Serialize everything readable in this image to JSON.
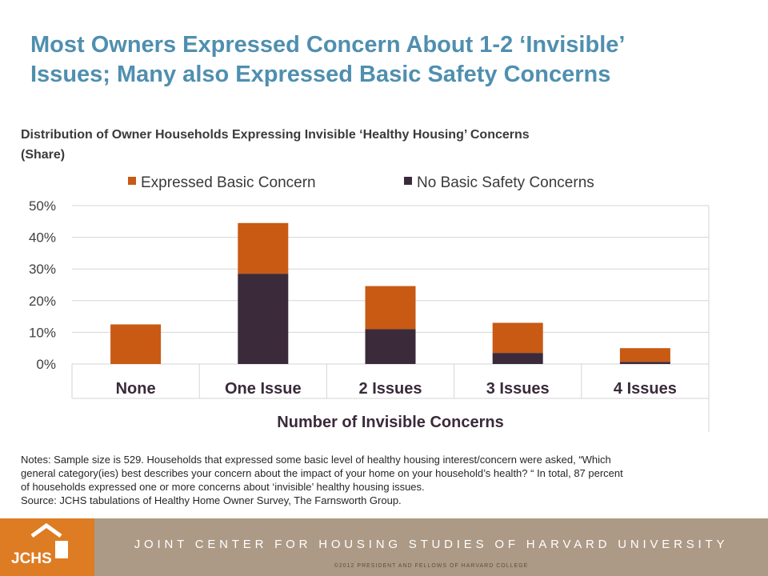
{
  "page": {
    "title_line1": "Most Owners Expressed Concern About 1-2 ‘Invisible’",
    "title_line2": "Issues; Many also Expressed Basic Safety Concerns",
    "subtitle_line1": "Distribution of Owner Households Expressing Invisible ‘Healthy Housing’ Concerns",
    "subtitle_line2": "(Share)"
  },
  "chart_data": {
    "type": "bar",
    "stacked": true,
    "categories": [
      "None",
      "One Issue",
      "2 Issues",
      "3 Issues",
      "4 Issues"
    ],
    "series": [
      {
        "name": "No Basic Safety Concerns",
        "values": [
          0,
          28.5,
          11,
          3.5,
          0.7
        ],
        "color": "#3b2a3a"
      },
      {
        "name": "Expressed Basic Concern",
        "values": [
          12.5,
          16,
          13.6,
          9.5,
          4.3
        ],
        "color": "#c85a14"
      }
    ],
    "legend_order": [
      "Expressed Basic Concern",
      "No Basic Safety Concerns"
    ],
    "legend_position": "top",
    "xlabel": "Number of Invisible Concerns",
    "ylabel": "",
    "ylim": [
      0,
      50
    ],
    "yticks": [
      "0%",
      "10%",
      "20%",
      "30%",
      "40%",
      "50%"
    ],
    "grid": true
  },
  "notes": {
    "line1": "Notes: Sample size is 529.  Households that expressed some basic level of healthy housing interest/concern were asked, “Which",
    "line2": "general category(ies) best describes your concern about the impact of your home on your household’s health? “  In total, 87 percent",
    "line3": "of households expressed one or more concerns about ‘invisible’ healthy housing issues.",
    "source": "Source: JCHS tabulations of Healthy Home Owner Survey, The Farnsworth Group."
  },
  "footer": {
    "logo_text": "JCHS",
    "organization": "JOINT CENTER FOR HOUSING STUDIES OF HARVARD UNIVERSITY",
    "copyright": "©2012 PRESIDENT AND FELLOWS OF HARVARD COLLEGE"
  }
}
